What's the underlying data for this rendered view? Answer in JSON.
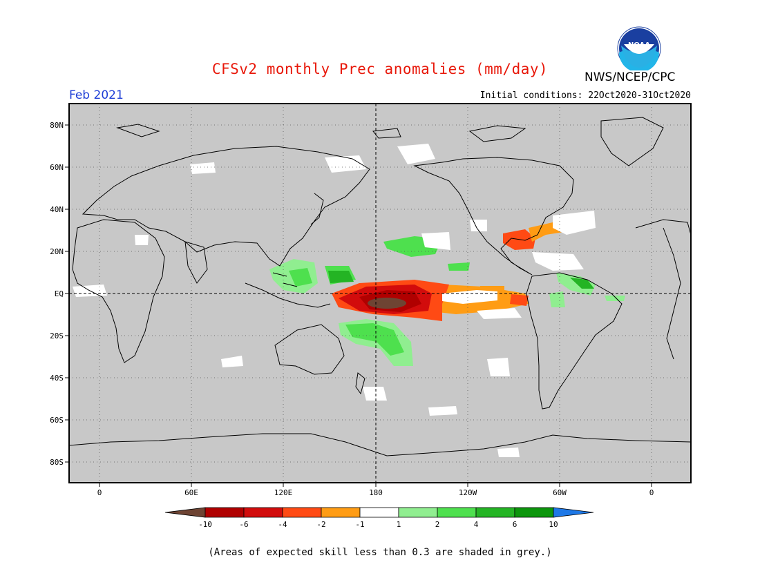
{
  "header": {
    "title": "CFSv2 monthly Prec anomalies (mm/day)",
    "agency": "NWS/NCEP/CPC",
    "logo_text": "NOAA",
    "month": "Feb 2021",
    "initial_conditions": "Initial conditions: 22Oct2020-31Oct2020"
  },
  "map": {
    "projection": "cylindrical-equidistant",
    "center_longitude": "180",
    "lat_labels": [
      "80N",
      "60N",
      "40N",
      "20N",
      "EQ",
      "20S",
      "40S",
      "60S",
      "80S"
    ],
    "lon_labels": [
      "0",
      "60E",
      "120E",
      "180",
      "120W",
      "60W",
      "0"
    ],
    "background_color": "#c8c8c8",
    "grid": "dotted"
  },
  "legend": {
    "labels": [
      "-10",
      "-6",
      "-4",
      "-2",
      "-1",
      "1",
      "2",
      "4",
      "6",
      "10"
    ],
    "colors": [
      "#6e4433",
      "#b00000",
      "#d20c0c",
      "#ff4a14",
      "#ff9c14",
      "#ffffff",
      "#90ee90",
      "#4ee04e",
      "#24b424",
      "#0c960c",
      "#1e78e6"
    ]
  },
  "footer": {
    "note": "(Areas of expected skill less than 0.3 are shaded in grey.)"
  }
}
